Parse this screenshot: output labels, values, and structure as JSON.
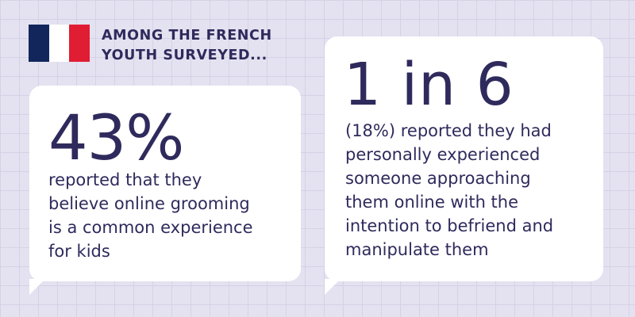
{
  "header": {
    "text": "AMONG THE FRENCH\nYOUTH SURVEYED..."
  },
  "flag": {
    "icon": "france-flag-icon",
    "colors": [
      "#12265c",
      "#ffffff",
      "#e01d33"
    ]
  },
  "stats": [
    {
      "value": "43%",
      "description": "reported that they\nbelieve online grooming\nis a common experience\nfor kids"
    },
    {
      "value": "1 in 6",
      "description": "(18%) reported they had\npersonally experienced\nsomeone approaching\nthem online with the\nintention to befriend and\nmanipulate them"
    }
  ],
  "colors": {
    "background": "#e4e2f0",
    "text": "#2f2a5c",
    "card": "#ffffff"
  }
}
